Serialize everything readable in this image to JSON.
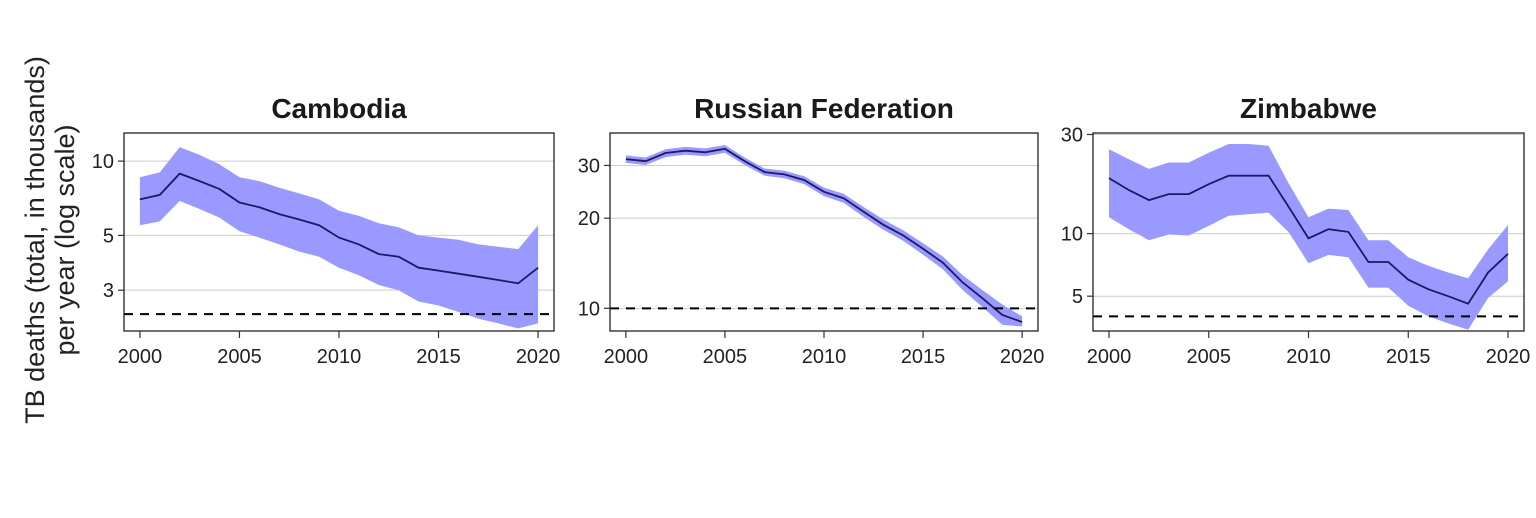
{
  "ylabel_lines": [
    "TB deaths (total, in thousands)",
    "per year (log scale)"
  ],
  "colors": {
    "band": "#9999ff",
    "line": "#1a1a66",
    "target": "#000000",
    "grid": "#cccccc"
  },
  "chart_data": [
    {
      "type": "line",
      "title": "Cambodia",
      "scale": "log",
      "ylim": [
        2.05,
        13.0
      ],
      "yticks": [
        3,
        5,
        10
      ],
      "xlim": [
        1999.2,
        2020.8
      ],
      "xticks": [
        2000,
        2005,
        2010,
        2015,
        2020
      ],
      "grid": true,
      "x": [
        2000,
        2001,
        2002,
        2003,
        2004,
        2005,
        2006,
        2007,
        2008,
        2009,
        2010,
        2011,
        2012,
        2013,
        2014,
        2015,
        2016,
        2017,
        2018,
        2019,
        2020
      ],
      "estimate": [
        7.0,
        7.3,
        8.9,
        8.3,
        7.7,
        6.8,
        6.5,
        6.1,
        5.8,
        5.5,
        4.9,
        4.6,
        4.2,
        4.1,
        3.7,
        3.6,
        3.5,
        3.4,
        3.3,
        3.2,
        3.7
      ],
      "lower": [
        5.5,
        5.7,
        6.9,
        6.4,
        5.9,
        5.2,
        4.9,
        4.6,
        4.3,
        4.1,
        3.7,
        3.45,
        3.15,
        3.0,
        2.7,
        2.6,
        2.45,
        2.3,
        2.2,
        2.1,
        2.2
      ],
      "upper": [
        8.6,
        9.0,
        11.4,
        10.6,
        9.7,
        8.6,
        8.3,
        7.8,
        7.4,
        7.0,
        6.3,
        6.0,
        5.6,
        5.4,
        5.0,
        4.9,
        4.8,
        4.6,
        4.5,
        4.4,
        5.5
      ],
      "target": 2.4
    },
    {
      "type": "line",
      "title": "Russian Federation",
      "scale": "log",
      "ylim": [
        8.4,
        38.5
      ],
      "yticks": [
        10,
        20,
        30
      ],
      "xlim": [
        1999.2,
        2020.8
      ],
      "xticks": [
        2000,
        2005,
        2010,
        2015,
        2020
      ],
      "grid": true,
      "x": [
        2000,
        2001,
        2002,
        2003,
        2004,
        2005,
        2006,
        2007,
        2008,
        2009,
        2010,
        2011,
        2012,
        2013,
        2014,
        2015,
        2016,
        2017,
        2018,
        2019,
        2020
      ],
      "estimate": [
        31.5,
        31.0,
        33.0,
        33.6,
        33.2,
        34.1,
        31.0,
        28.5,
        28.0,
        26.8,
        24.5,
        23.3,
        21.0,
        19.0,
        17.5,
        15.8,
        14.2,
        12.2,
        10.8,
        9.5,
        9.0
      ],
      "lower": [
        30.6,
        30.1,
        32.0,
        32.6,
        32.2,
        33.1,
        30.1,
        27.7,
        27.2,
        26.0,
        23.7,
        22.5,
        20.2,
        18.3,
        16.8,
        15.1,
        13.5,
        11.5,
        10.1,
        8.8,
        8.7
      ],
      "upper": [
        32.4,
        31.9,
        34.0,
        34.6,
        34.2,
        35.1,
        31.9,
        29.3,
        28.8,
        27.6,
        25.3,
        24.1,
        21.8,
        19.8,
        18.2,
        16.5,
        14.9,
        12.9,
        11.5,
        10.3,
        9.4
      ],
      "target": 10
    },
    {
      "type": "line",
      "title": "Zimbabwe",
      "scale": "log",
      "ylim": [
        3.4,
        30.5
      ],
      "yticks": [
        5,
        10,
        30
      ],
      "xlim": [
        1999.2,
        2020.8
      ],
      "xticks": [
        2000,
        2005,
        2010,
        2015,
        2020
      ],
      "grid": true,
      "x": [
        2000,
        2001,
        2002,
        2003,
        2004,
        2005,
        2006,
        2007,
        2008,
        2009,
        2010,
        2011,
        2012,
        2013,
        2014,
        2015,
        2016,
        2017,
        2018,
        2019,
        2020
      ],
      "estimate": [
        18.5,
        16.2,
        14.5,
        15.5,
        15.5,
        17.3,
        19.0,
        19.0,
        19.0,
        13.5,
        9.5,
        10.5,
        10.2,
        7.3,
        7.3,
        6.0,
        5.4,
        5.0,
        4.6,
        6.5,
        8.0
      ],
      "lower": [
        12.0,
        10.5,
        9.3,
        9.9,
        9.8,
        10.9,
        12.2,
        12.4,
        12.6,
        10.2,
        7.2,
        7.9,
        7.7,
        5.5,
        5.5,
        4.5,
        4.0,
        3.7,
        3.45,
        4.9,
        5.9
      ],
      "upper": [
        25.5,
        22.8,
        20.5,
        22.0,
        22.0,
        24.5,
        27.0,
        27.0,
        26.5,
        17.5,
        12.0,
        13.2,
        13.0,
        9.3,
        9.3,
        7.7,
        7.0,
        6.5,
        6.1,
        8.4,
        11.0
      ],
      "target": 4.0
    }
  ]
}
